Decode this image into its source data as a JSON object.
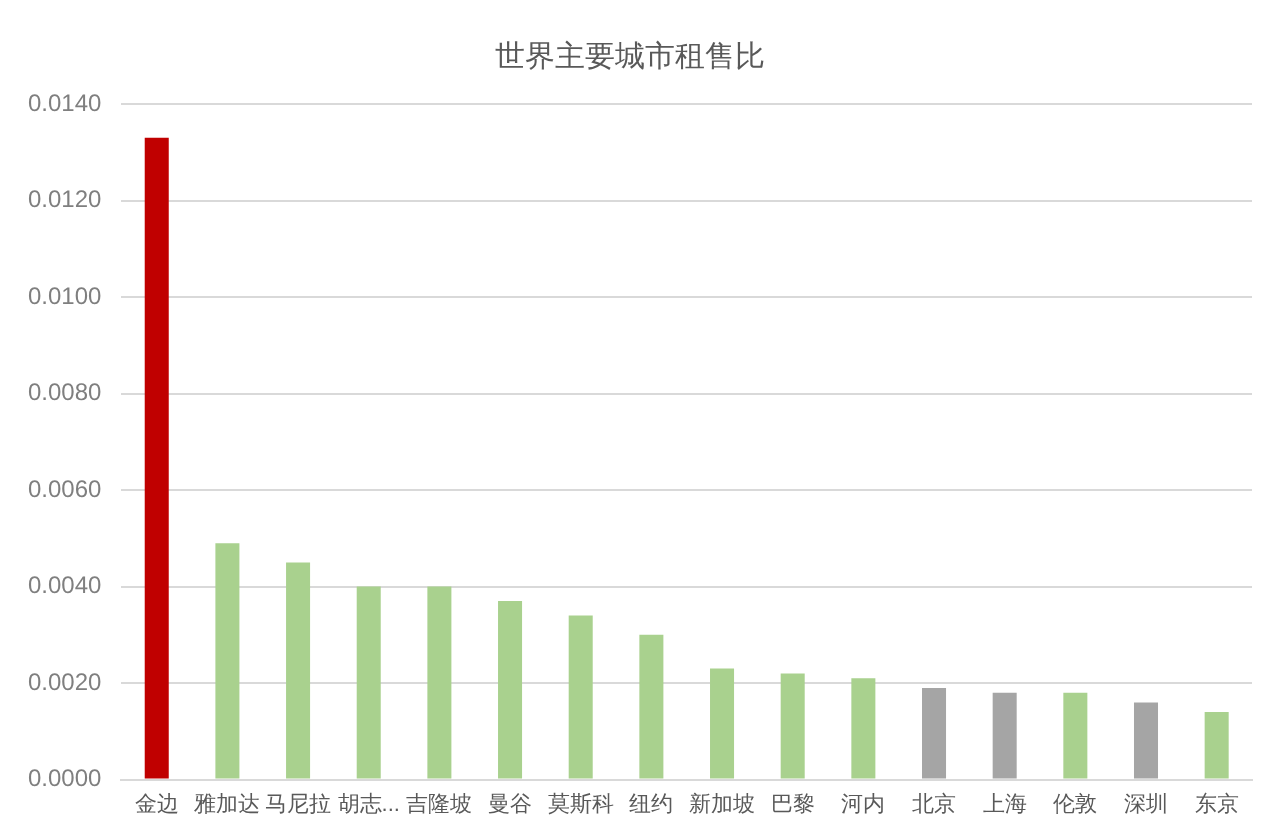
{
  "chart_data": {
    "type": "bar",
    "title": "世界主要城市租售比",
    "categories": [
      "金边",
      "雅加达",
      "马尼拉",
      "胡志...",
      "吉隆坡",
      "曼谷",
      "莫斯科",
      "纽约",
      "新加坡",
      "巴黎",
      "河内",
      "北京",
      "上海",
      "伦敦",
      "深圳",
      "东京"
    ],
    "values": [
      0.0133,
      0.0049,
      0.0045,
      0.004,
      0.004,
      0.0037,
      0.0034,
      0.003,
      0.0023,
      0.0022,
      0.0021,
      0.0019,
      0.0018,
      0.0018,
      0.0016,
      0.0014
    ],
    "colors": [
      "#c00000",
      "#a9d18e",
      "#a9d18e",
      "#a9d18e",
      "#a9d18e",
      "#a9d18e",
      "#a9d18e",
      "#a9d18e",
      "#a9d18e",
      "#a9d18e",
      "#a9d18e",
      "#a5a5a5",
      "#a5a5a5",
      "#a9d18e",
      "#a5a5a5",
      "#a9d18e"
    ],
    "ylim": [
      0,
      0.014
    ],
    "yticks": [
      {
        "value": 0,
        "label": "0.0000"
      },
      {
        "value": 0.002,
        "label": "0.0020"
      },
      {
        "value": 0.004,
        "label": "0.0040"
      },
      {
        "value": 0.006,
        "label": "0.0060"
      },
      {
        "value": 0.008,
        "label": "0.0080"
      },
      {
        "value": 0.01,
        "label": "0.0100"
      },
      {
        "value": 0.012,
        "label": "0.0120"
      },
      {
        "value": 0.014,
        "label": "0.0140"
      }
    ],
    "grid": "y",
    "legend": false
  }
}
